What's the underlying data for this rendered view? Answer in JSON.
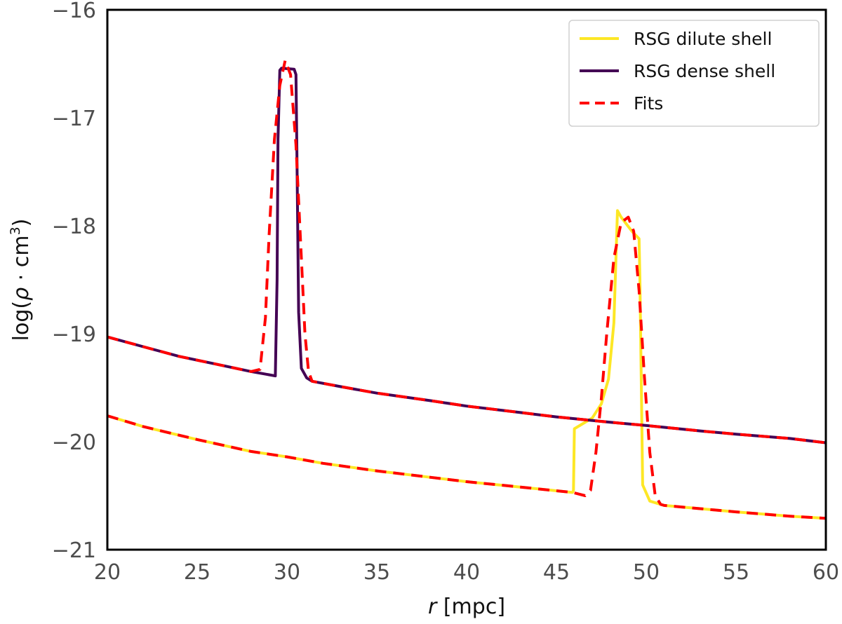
{
  "chart_data": {
    "type": "line",
    "title": "",
    "xlabel_var": "r",
    "xlabel_unit": " [mpc]",
    "ylabel_pre": "log(",
    "ylabel_rho": "ρ",
    "ylabel_mid": " · cm",
    "ylabel_sup": "3",
    "ylabel_post": ")",
    "xlim": [
      20,
      60
    ],
    "ylim": [
      -21,
      -16
    ],
    "xticks": [
      20,
      25,
      30,
      35,
      40,
      45,
      50,
      55,
      60
    ],
    "xtick_labels": [
      "20",
      "25",
      "30",
      "35",
      "40",
      "45",
      "50",
      "55",
      "60"
    ],
    "yticks": [
      -21,
      -20,
      -19,
      -18,
      -17,
      -16
    ],
    "ytick_labels": [
      "−21",
      "−20",
      "−19",
      "−18",
      "−17",
      "−16"
    ],
    "grid": false,
    "legend_position": "top-right",
    "series": [
      {
        "name": "RSG dilute shell",
        "color": "#fde725",
        "style": "solid",
        "x": [
          20,
          22,
          25,
          28,
          30,
          32,
          35,
          38,
          40,
          43,
          45.9,
          45.95,
          46.0,
          47.0,
          47.5,
          47.9,
          48.2,
          48.4,
          48.6,
          49.2,
          49.6,
          49.65,
          49.8,
          50.2,
          51,
          53,
          55,
          58,
          60
        ],
        "y": [
          -19.76,
          -19.86,
          -19.98,
          -20.09,
          -20.14,
          -20.2,
          -20.27,
          -20.33,
          -20.37,
          -20.42,
          -20.47,
          -20.45,
          -19.88,
          -19.78,
          -19.65,
          -19.42,
          -18.9,
          -17.86,
          -17.92,
          -18.05,
          -18.12,
          -18.5,
          -20.4,
          -20.55,
          -20.59,
          -20.62,
          -20.65,
          -20.69,
          -20.71
        ]
      },
      {
        "name": "RSG dense shell",
        "color": "#440154",
        "style": "solid",
        "x": [
          20,
          22,
          24,
          26,
          28,
          29.35,
          29.45,
          29.5,
          29.6,
          29.7,
          30.4,
          30.5,
          30.55,
          30.65,
          30.8,
          31.1,
          31.4,
          33,
          35,
          38,
          40,
          43,
          45,
          48,
          50,
          53,
          55,
          58,
          60
        ],
        "y": [
          -19.03,
          -19.12,
          -19.21,
          -19.28,
          -19.35,
          -19.39,
          -18.5,
          -17.2,
          -16.56,
          -16.54,
          -16.55,
          -16.6,
          -17.3,
          -18.8,
          -19.32,
          -19.41,
          -19.44,
          -19.49,
          -19.55,
          -19.62,
          -19.67,
          -19.73,
          -19.77,
          -19.82,
          -19.85,
          -19.9,
          -19.93,
          -19.97,
          -20.01
        ]
      },
      {
        "name": "Fits",
        "color": "#ff0000",
        "style": "dashed",
        "segments": [
          {
            "x": [
              20,
              22,
              24,
              26,
              28,
              28.5,
              28.8,
              29.0,
              29.3,
              29.6,
              29.9,
              30.2,
              30.5,
              30.8,
              31.0,
              31.2,
              31.4,
              33,
              35,
              38,
              40,
              43,
              45,
              48,
              50,
              53,
              55,
              58,
              60
            ],
            "y": [
              -19.03,
              -19.12,
              -19.21,
              -19.28,
              -19.35,
              -19.33,
              -18.85,
              -18.1,
              -17.2,
              -16.7,
              -16.47,
              -16.6,
              -17.25,
              -18.3,
              -19.0,
              -19.35,
              -19.44,
              -19.49,
              -19.55,
              -19.62,
              -19.67,
              -19.73,
              -19.77,
              -19.82,
              -19.85,
              -19.9,
              -19.93,
              -19.97,
              -20.01
            ]
          },
          {
            "x": [
              20,
              22,
              25,
              28,
              30,
              32,
              35,
              38,
              40,
              43,
              45.9,
              46.6,
              46.9,
              47.2,
              47.5,
              47.8,
              48.2,
              48.6,
              49.0,
              49.3,
              49.6,
              49.9,
              50.2,
              50.5,
              50.8,
              51,
              53,
              55,
              58,
              60
            ],
            "y": [
              -19.76,
              -19.86,
              -19.98,
              -20.09,
              -20.14,
              -20.2,
              -20.27,
              -20.33,
              -20.37,
              -20.42,
              -20.47,
              -20.5,
              -20.45,
              -20.1,
              -19.6,
              -19.0,
              -18.3,
              -17.97,
              -17.92,
              -18.05,
              -18.6,
              -19.4,
              -20.1,
              -20.5,
              -20.58,
              -20.59,
              -20.62,
              -20.65,
              -20.69,
              -20.71
            ]
          }
        ]
      }
    ]
  }
}
